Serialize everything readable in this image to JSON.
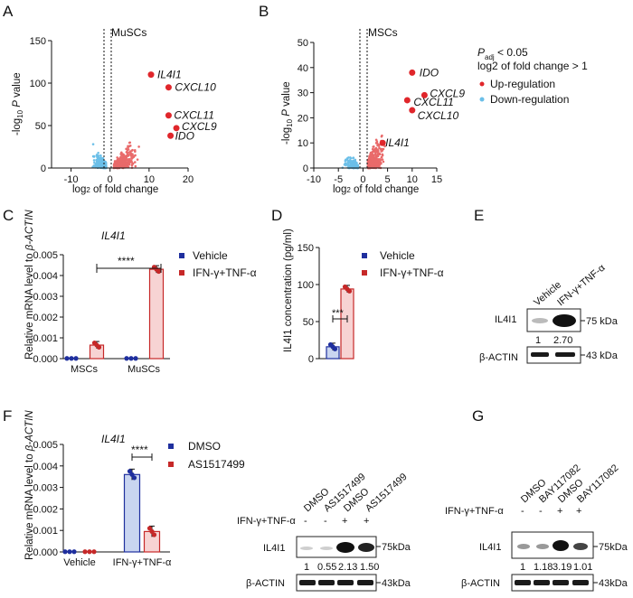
{
  "colors": {
    "up": "#e96a6a",
    "down": "#6bbfe8",
    "vehicle": "#1f2f9e",
    "treat": "#c62828",
    "gene_label": "#e0262b"
  },
  "panel_a": {
    "letter": "A",
    "title": "MuSCs",
    "ylabel": "-log10 P value",
    "xlabel": "log2 of fold change",
    "genes": [
      {
        "name": "IL4I1",
        "lfc": 10.5,
        "p": 110
      },
      {
        "name": "CXCL10",
        "lfc": 15,
        "p": 95
      },
      {
        "name": "CXCL11",
        "lfc": 15,
        "p": 62
      },
      {
        "name": "CXCL9",
        "lfc": 17,
        "p": 47
      },
      {
        "name": "IDO",
        "lfc": 15.5,
        "p": 38
      }
    ],
    "chart_data": {
      "type": "scatter",
      "xlim": [
        -15,
        20
      ],
      "ylim": [
        0,
        150
      ],
      "xticks": [
        -10,
        0,
        10,
        20
      ],
      "yticks": [
        0,
        50,
        100,
        150
      ]
    }
  },
  "panel_b": {
    "letter": "B",
    "title": "MSCs",
    "ylabel": "-log10 P value",
    "xlabel": "log2 of fold change",
    "genes": [
      {
        "name": "IDO",
        "lfc": 10,
        "p": 38
      },
      {
        "name": "CXCL9",
        "lfc": 12.5,
        "p": 29
      },
      {
        "name": "CXCL11",
        "lfc": 9,
        "p": 27
      },
      {
        "name": "CXCL10",
        "lfc": 10,
        "p": 23
      },
      {
        "name": "IL4I1",
        "lfc": 4,
        "p": 10
      }
    ],
    "chart_data": {
      "type": "scatter",
      "xlim": [
        -10,
        15
      ],
      "ylim": [
        0,
        50
      ],
      "xticks": [
        -10,
        -5,
        0,
        5,
        10,
        15
      ],
      "yticks": [
        0,
        10,
        20,
        30,
        40,
        50
      ]
    }
  },
  "legend_ab": {
    "padj": "P",
    "padj_sub": "adj",
    "padj_rest": " < 0.05",
    "lfc": "log2 of fold change > 1",
    "up": "Up-regulation",
    "down": "Down-regulation"
  },
  "panel_c": {
    "letter": "C",
    "title": "IL4I1",
    "ylabel_pre": "Relative mRNA level to ",
    "ylabel_gene": "β-ACTIN",
    "sig": "****",
    "legend": [
      "Vehicle",
      "IFN-γ+TNF-α"
    ],
    "chart_data": {
      "type": "bar",
      "categories": [
        "MSCs",
        "MuSCs"
      ],
      "ylim": [
        0,
        0.005
      ],
      "yticks": [
        "0.000",
        "0.001",
        "0.002",
        "0.003",
        "0.004",
        "0.005"
      ],
      "series": [
        {
          "name": "Vehicle",
          "values": [
            1e-05,
            1e-05
          ]
        },
        {
          "name": "IFN-γ+TNF-α",
          "values": [
            0.00065,
            0.0043
          ]
        }
      ]
    }
  },
  "panel_d": {
    "letter": "D",
    "ylabel": "IL4I1 concentration (pg/ml)",
    "sig": "***",
    "legend": [
      "Vehicle",
      "IFN-γ+TNF-α"
    ],
    "chart_data": {
      "type": "bar",
      "ylim": [
        0,
        150
      ],
      "yticks": [
        "0",
        "50",
        "100",
        "150"
      ],
      "series": [
        {
          "name": "Vehicle",
          "values": [
            16
          ]
        },
        {
          "name": "IFN-γ+TNF-α",
          "values": [
            94
          ]
        }
      ]
    }
  },
  "panel_e": {
    "letter": "E",
    "lanes": [
      "Vehicle",
      "IFN-γ+TNF-α"
    ],
    "protein": "IL4I1",
    "quant": [
      "1",
      "2.70"
    ],
    "loading": "β-ACTIN",
    "mw1": "75 kDa",
    "mw2": "43 kDa"
  },
  "panel_f": {
    "letter": "F",
    "title": "IL4I1",
    "ylabel_pre": "Relative mRNA level to ",
    "ylabel_gene": "β-ACTIN",
    "sig": "****",
    "legend": [
      "DMSO",
      "AS1517499"
    ],
    "chart_data": {
      "type": "bar",
      "categories": [
        "Vehicle",
        "IFN-γ+TNF-α"
      ],
      "ylim": [
        0,
        0.005
      ],
      "yticks": [
        "0.000",
        "0.001",
        "0.002",
        "0.003",
        "0.004",
        "0.005"
      ],
      "series": [
        {
          "name": "DMSO",
          "values": [
            1e-05,
            0.0036
          ]
        },
        {
          "name": "AS1517499",
          "values": [
            1e-05,
            0.00095
          ]
        }
      ]
    },
    "blot": {
      "lanes": [
        "DMSO",
        "AS1517499",
        "DMSO",
        "AS1517499"
      ],
      "treat_label": "IFN-γ+TNF-α",
      "signs": [
        "-",
        "-",
        "+",
        "+"
      ],
      "protein": "IL4I1",
      "quant": [
        "1",
        "0.55",
        "2.13",
        "1.50"
      ],
      "loading": "β-ACTIN",
      "mw1": "75kDa",
      "mw2": "43kDa"
    }
  },
  "panel_g": {
    "letter": "G",
    "lanes": [
      "DMSO",
      "BAY117082",
      "DMSO",
      "BAY117082"
    ],
    "treat_label": "IFN-γ+TNF-α",
    "signs": [
      "-",
      "-",
      "+",
      "+"
    ],
    "protein": "IL4I1",
    "quant": [
      "1",
      "1.18",
      "3.19",
      "1.01"
    ],
    "loading": "β-ACTIN",
    "mw1": "75kDa",
    "mw2": "43kDa"
  }
}
